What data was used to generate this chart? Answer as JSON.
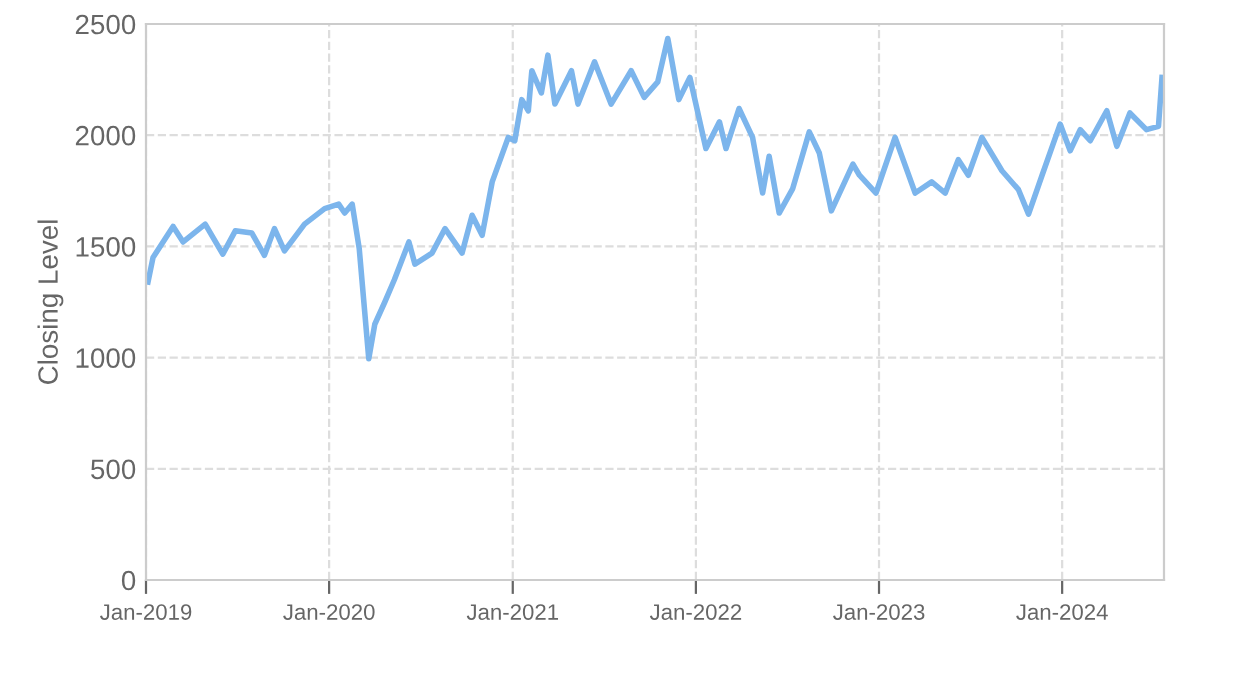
{
  "chart_data": {
    "type": "line",
    "ylabel": "Closing Level",
    "xlim": [
      "2019-01-01",
      "2024-07-22"
    ],
    "ylim": [
      0,
      2500
    ],
    "xticks": [
      {
        "value": "2019-01-01",
        "label": "Jan-2019"
      },
      {
        "value": "2020-01-01",
        "label": "Jan-2020"
      },
      {
        "value": "2021-01-01",
        "label": "Jan-2021"
      },
      {
        "value": "2022-01-01",
        "label": "Jan-2022"
      },
      {
        "value": "2023-01-01",
        "label": "Jan-2023"
      },
      {
        "value": "2024-01-01",
        "label": "Jan-2024"
      }
    ],
    "yticks": [
      0,
      500,
      1000,
      1500,
      2000,
      2500
    ],
    "grid": true,
    "line_style": "solid",
    "marker": "none",
    "x": [
      "2019-01-05",
      "2019-01-15",
      "2019-02-24",
      "2019-03-16",
      "2019-04-29",
      "2019-06-03",
      "2019-06-28",
      "2019-07-31",
      "2019-08-25",
      "2019-09-14",
      "2019-10-04",
      "2019-11-13",
      "2019-12-23",
      "2020-01-20",
      "2020-02-01",
      "2020-02-16",
      "2020-03-01",
      "2020-03-20",
      "2020-04-01",
      "2020-04-21",
      "2020-05-10",
      "2020-06-08",
      "2020-06-20",
      "2020-07-24",
      "2020-08-19",
      "2020-09-22",
      "2020-10-12",
      "2020-11-01",
      "2020-11-21",
      "2020-12-23",
      "2021-01-05",
      "2021-01-19",
      "2021-02-01",
      "2021-02-08",
      "2021-02-27",
      "2021-03-12",
      "2021-03-26",
      "2021-04-28",
      "2021-05-11",
      "2021-06-13",
      "2021-07-16",
      "2021-08-25",
      "2021-09-20",
      "2021-10-17",
      "2021-11-06",
      "2021-11-28",
      "2021-12-20",
      "2022-01-21",
      "2022-02-17",
      "2022-03-02",
      "2022-03-28",
      "2022-04-24",
      "2022-05-14",
      "2022-05-27",
      "2022-06-16",
      "2022-07-13",
      "2022-08-15",
      "2022-09-04",
      "2022-09-28",
      "2022-11-10",
      "2022-11-23",
      "2022-12-26",
      "2023-02-02",
      "2023-03-14",
      "2023-04-16",
      "2023-05-13",
      "2023-06-08",
      "2023-06-28",
      "2023-07-25",
      "2023-09-03",
      "2023-10-06",
      "2023-10-26",
      "2023-11-22",
      "2023-12-28",
      "2024-01-17",
      "2024-02-06",
      "2024-02-26",
      "2024-03-30",
      "2024-04-19",
      "2024-05-15",
      "2024-06-17",
      "2024-07-11",
      "2024-07-18"
    ],
    "series": [
      {
        "color": "#7cb5ec",
        "values": [
          1340,
          1450,
          1590,
          1520,
          1600,
          1465,
          1570,
          1560,
          1460,
          1580,
          1480,
          1600,
          1670,
          1690,
          1650,
          1690,
          1490,
          995,
          1150,
          1250,
          1350,
          1520,
          1420,
          1470,
          1580,
          1470,
          1640,
          1550,
          1790,
          1990,
          1975,
          2160,
          2110,
          2290,
          2190,
          2360,
          2140,
          2290,
          2140,
          2330,
          2140,
          2290,
          2170,
          2240,
          2435,
          2160,
          2260,
          1940,
          2060,
          1940,
          2120,
          1990,
          1740,
          1905,
          1650,
          1760,
          2015,
          1920,
          1660,
          1870,
          1820,
          1740,
          1990,
          1740,
          1790,
          1740,
          1890,
          1820,
          1990,
          1840,
          1755,
          1645,
          1820,
          2050,
          1930,
          2025,
          1975,
          2110,
          1950,
          2100,
          2025,
          2040,
          2260
        ]
      }
    ]
  }
}
